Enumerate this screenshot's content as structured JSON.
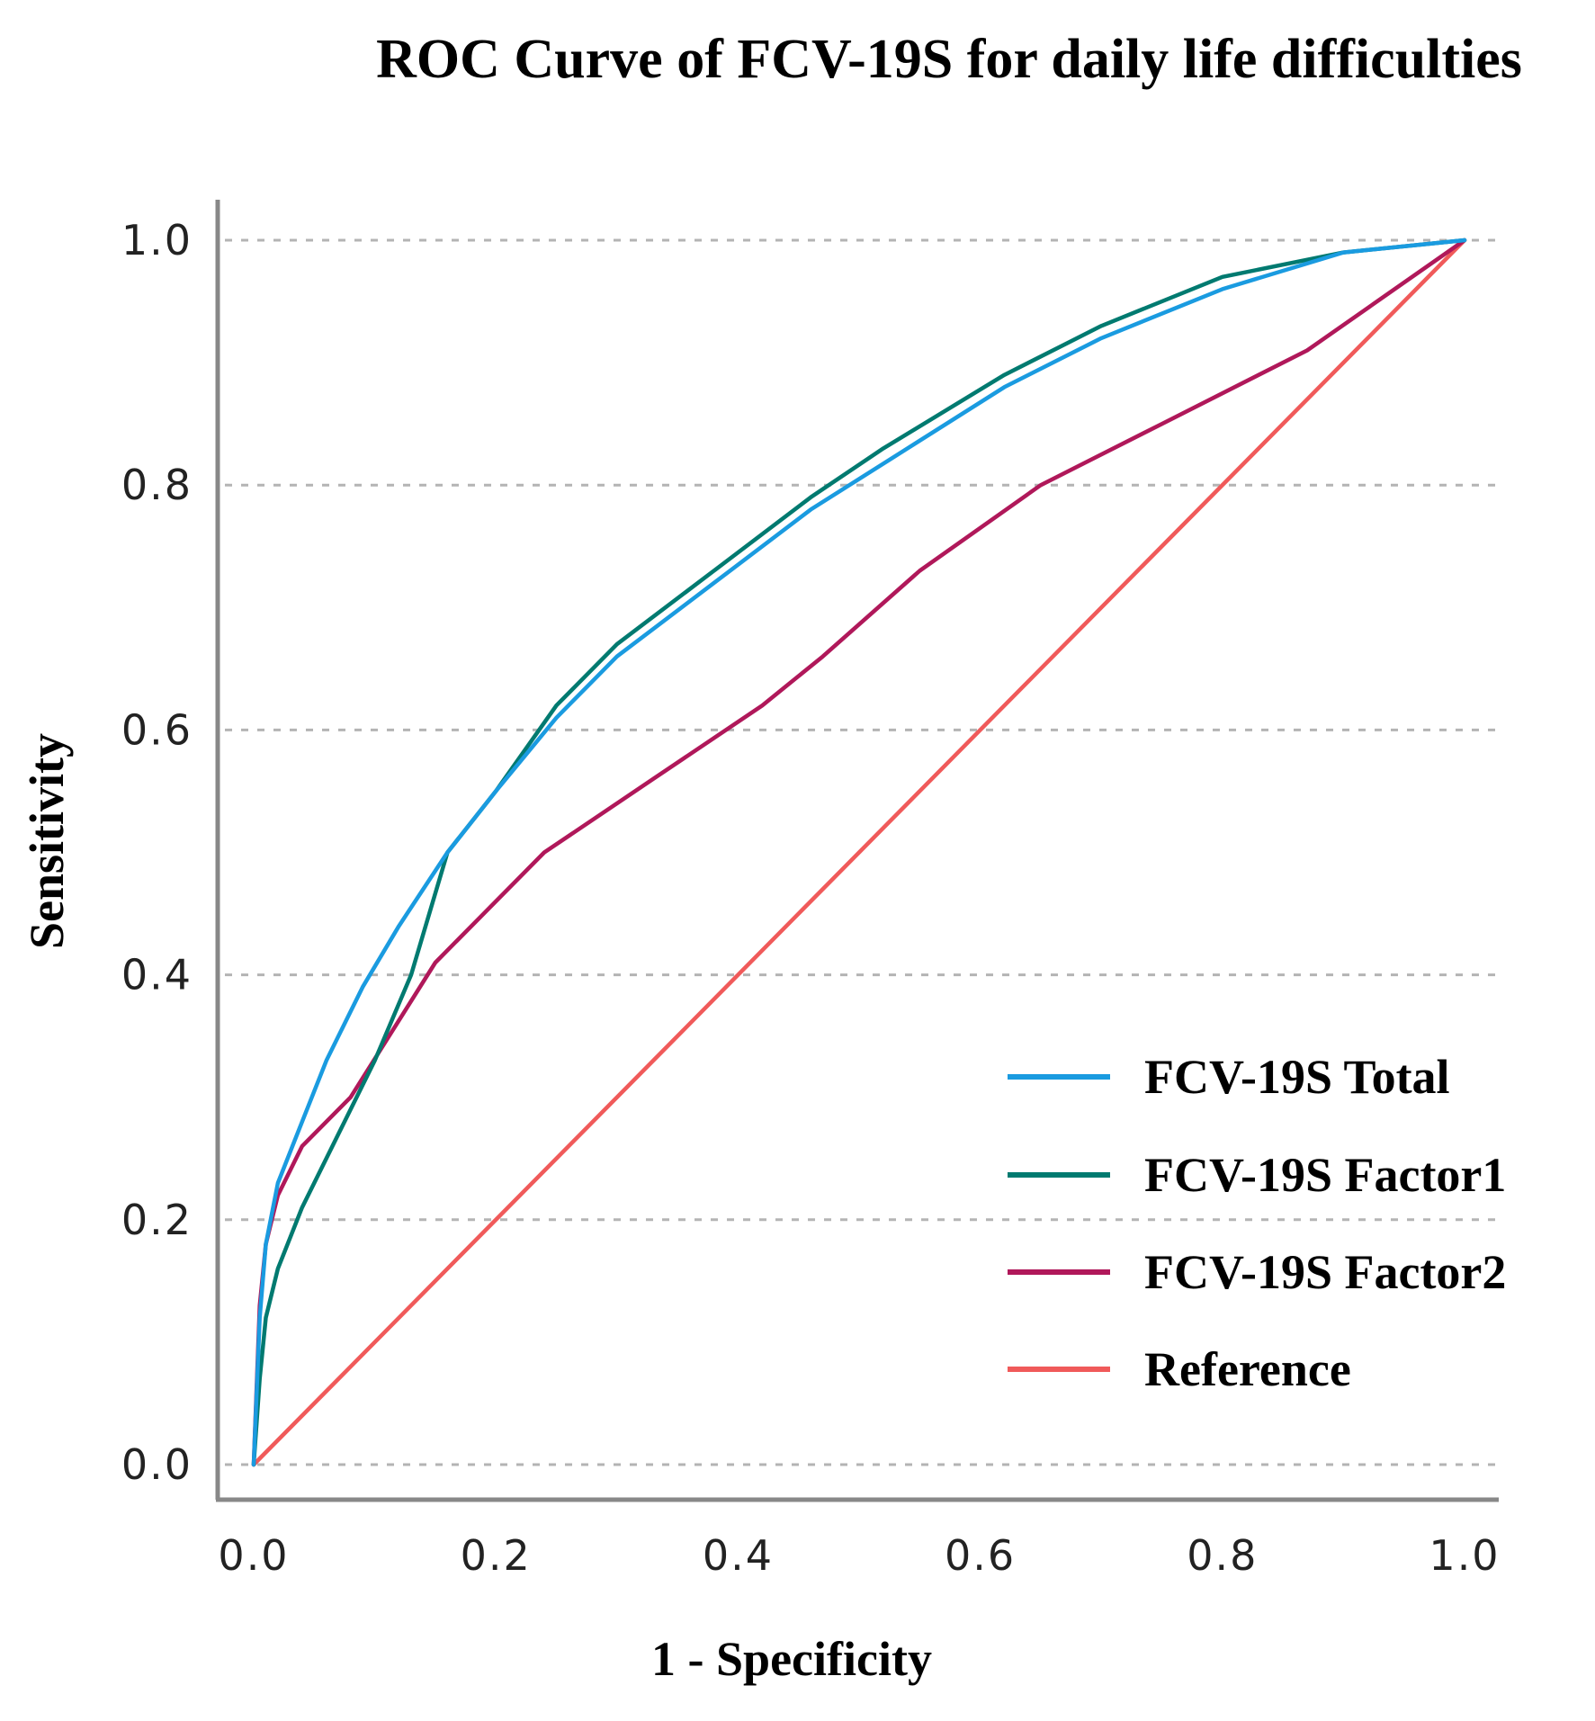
{
  "chart_data": {
    "type": "line",
    "title": "ROC Curve of FCV-19S for daily life difficulties",
    "xlabel": "1 - Specificity",
    "ylabel": "Sensitivity",
    "xlim": [
      0,
      1
    ],
    "ylim": [
      0,
      1
    ],
    "xticks": [
      "0.0",
      "0.2",
      "0.4",
      "0.6",
      "0.8",
      "1.0"
    ],
    "yticks": [
      "0.0",
      "0.2",
      "0.4",
      "0.6",
      "0.8",
      "1.0"
    ],
    "grid": "horizontal-dashed",
    "legend_position": "bottom-right",
    "series": [
      {
        "name": "FCV-19S Total",
        "color": "#1a9be0",
        "x": [
          0,
          0.005,
          0.01,
          0.02,
          0.04,
          0.06,
          0.09,
          0.12,
          0.16,
          0.2,
          0.25,
          0.3,
          0.38,
          0.46,
          0.54,
          0.62,
          0.7,
          0.8,
          0.9,
          1.0
        ],
        "y": [
          0,
          0.12,
          0.18,
          0.23,
          0.28,
          0.33,
          0.39,
          0.44,
          0.5,
          0.55,
          0.61,
          0.66,
          0.72,
          0.78,
          0.83,
          0.88,
          0.92,
          0.96,
          0.99,
          1.0
        ]
      },
      {
        "name": "FCV-19S Factor1",
        "color": "#007a70",
        "x": [
          0,
          0.005,
          0.01,
          0.02,
          0.04,
          0.07,
          0.1,
          0.13,
          0.16,
          0.2,
          0.25,
          0.3,
          0.38,
          0.46,
          0.52,
          0.62,
          0.7,
          0.8,
          0.9,
          1.0
        ],
        "y": [
          0,
          0.07,
          0.12,
          0.16,
          0.21,
          0.27,
          0.33,
          0.4,
          0.5,
          0.55,
          0.62,
          0.67,
          0.73,
          0.79,
          0.83,
          0.89,
          0.93,
          0.97,
          0.99,
          1.0
        ]
      },
      {
        "name": "FCV-19S Factor2",
        "color": "#b0185a",
        "x": [
          0,
          0.005,
          0.01,
          0.02,
          0.04,
          0.08,
          0.15,
          0.24,
          0.33,
          0.42,
          0.47,
          0.55,
          0.65,
          0.75,
          0.87,
          1.0
        ],
        "y": [
          0,
          0.13,
          0.18,
          0.22,
          0.26,
          0.3,
          0.41,
          0.5,
          0.56,
          0.62,
          0.66,
          0.73,
          0.8,
          0.85,
          0.91,
          1.0
        ]
      },
      {
        "name": "Reference",
        "color": "#f05a5a",
        "x": [
          0,
          1
        ],
        "y": [
          0,
          1
        ]
      }
    ]
  }
}
